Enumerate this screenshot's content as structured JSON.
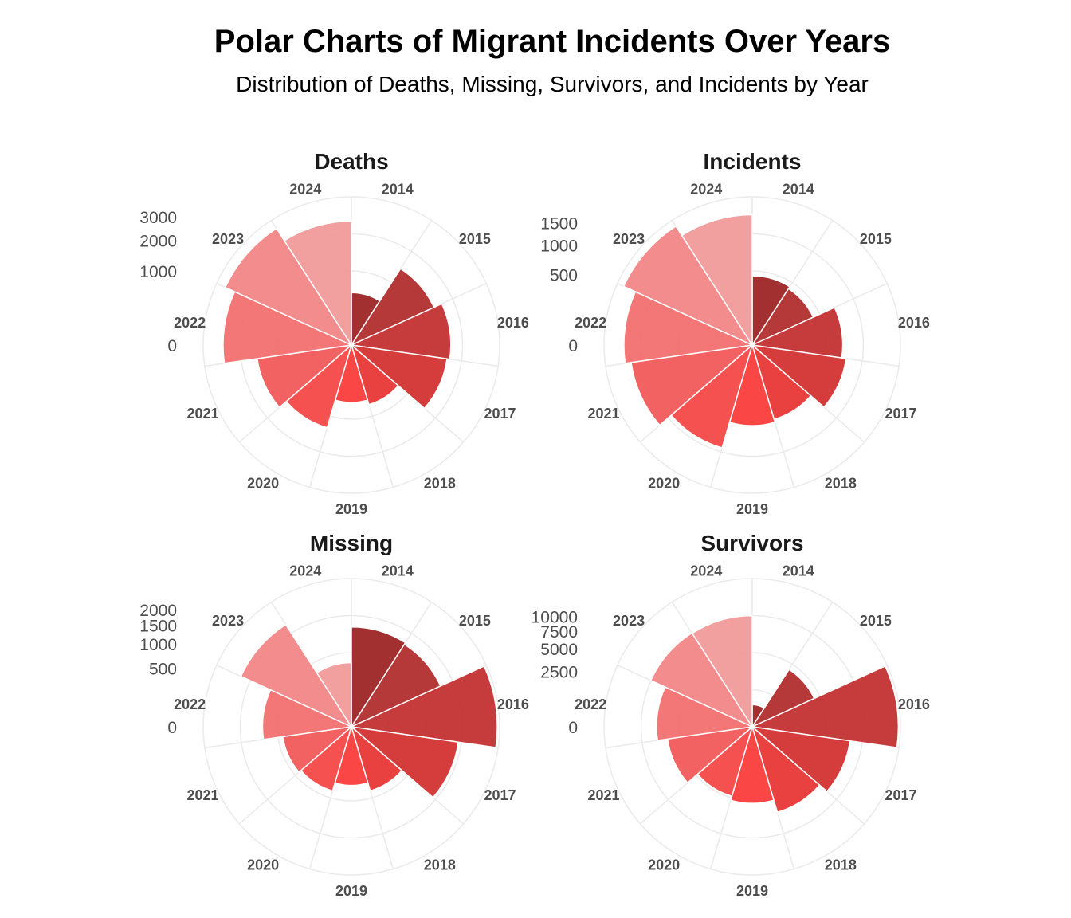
{
  "title": "Polar Charts of Migrant Incidents Over Years",
  "subtitle": "Distribution of Deaths, Missing, Survivors, and Incidents by Year",
  "chart_data": [
    {
      "type": "bar",
      "coord": "polar",
      "title": "Deaths",
      "categories": [
        "2014",
        "2015",
        "2016",
        "2017",
        "2018",
        "2019",
        "2020",
        "2021",
        "2022",
        "2023",
        "2024"
      ],
      "values": [
        500,
        1500,
        1800,
        1700,
        700,
        600,
        1350,
        1650,
        3000,
        3500,
        2800
      ],
      "radial_ticks": [
        0,
        1000,
        2000,
        3000
      ],
      "max": 4000,
      "colors": [
        "#9e2525",
        "#b22e2e",
        "#c33030",
        "#d33333",
        "#e83636",
        "#fb3c3c",
        "#f54848",
        "#f25a5a",
        "#f27070",
        "#f28787",
        "#f09a9a"
      ]
    },
    {
      "type": "bar",
      "coord": "polar",
      "title": "Incidents",
      "categories": [
        "2014",
        "2015",
        "2016",
        "2017",
        "2018",
        "2019",
        "2020",
        "2021",
        "2022",
        "2023",
        "2024"
      ],
      "values": [
        480,
        450,
        820,
        900,
        600,
        650,
        1150,
        1500,
        1650,
        2000,
        1700
      ],
      "radial_ticks": [
        0,
        500,
        1000,
        1500
      ],
      "max": 2200,
      "colors": [
        "#9e2525",
        "#b22e2e",
        "#c33030",
        "#d33333",
        "#e83636",
        "#fb3c3c",
        "#f54848",
        "#f25a5a",
        "#f27070",
        "#f28787",
        "#f09a9a"
      ]
    },
    {
      "type": "bar",
      "coord": "polar",
      "title": "Missing",
      "categories": [
        "2014",
        "2015",
        "2016",
        "2017",
        "2018",
        "2019",
        "2020",
        "2021",
        "2022",
        "2023",
        "2024"
      ],
      "values": [
        1450,
        1400,
        3100,
        1700,
        650,
        500,
        650,
        700,
        1150,
        2150,
        600
      ],
      "radial_ticks": [
        0,
        500,
        1000,
        1500,
        2000
      ],
      "max": 3200,
      "colors": [
        "#9e2525",
        "#b22e2e",
        "#c33030",
        "#d33333",
        "#e83636",
        "#fb3c3c",
        "#f54848",
        "#f25a5a",
        "#f27070",
        "#f28787",
        "#f09a9a"
      ]
    },
    {
      "type": "bar",
      "coord": "polar",
      "title": "Survivors",
      "categories": [
        "2014",
        "2015",
        "2016",
        "2017",
        "2018",
        "2019",
        "2020",
        "2021",
        "2022",
        "2023",
        "2024"
      ],
      "values": [
        400,
        3800,
        17500,
        8000,
        6500,
        4800,
        4300,
        6000,
        7500,
        10200,
        10100
      ],
      "radial_ticks": [
        0,
        2500,
        5000,
        7500,
        10000
      ],
      "max": 18000,
      "colors": [
        "#9e2525",
        "#b22e2e",
        "#c33030",
        "#d33333",
        "#e83636",
        "#fb3c3c",
        "#f54848",
        "#f25a5a",
        "#f27070",
        "#f28787",
        "#f09a9a"
      ]
    }
  ]
}
